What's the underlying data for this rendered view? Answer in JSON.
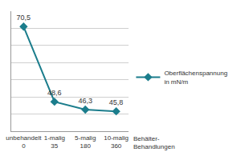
{
  "chart_data": {
    "type": "line",
    "categories": [
      "unbehandelt\n0",
      "1-malig\n35",
      "5-malig\n180",
      "10-malig\n360"
    ],
    "series": [
      {
        "name": "Oberflächenspannung\nin mN/m",
        "color": "#1b7d8c",
        "values": [
          70.5,
          48.6,
          46.3,
          45.8
        ],
        "value_labels": [
          "70,5",
          "48,6",
          "46,3",
          "45,8"
        ],
        "marker": "diamond"
      }
    ],
    "xlabel": "Behälter-\nBehandlungen",
    "ylim": [
      40,
      75
    ],
    "yticks": [
      40,
      45,
      50,
      55,
      60,
      65,
      70,
      75
    ],
    "grid": true,
    "legend": "right",
    "data_labels": true,
    "tick_labels": "x"
  }
}
